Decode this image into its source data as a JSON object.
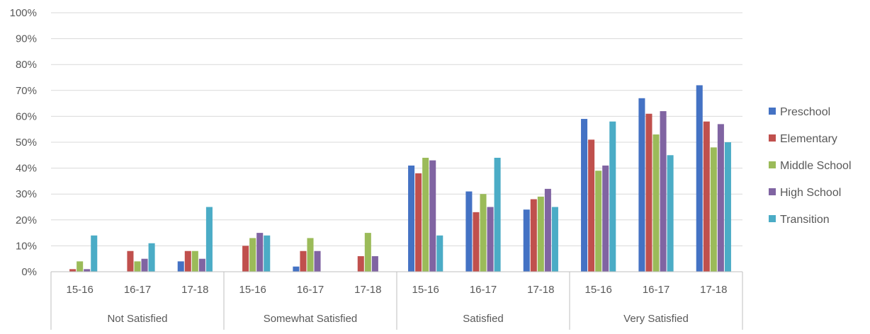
{
  "chart_data": {
    "type": "bar",
    "title": "",
    "xlabel": "",
    "ylabel": "",
    "ylim": [
      0,
      100
    ],
    "yticks": [
      0,
      10,
      20,
      30,
      40,
      50,
      60,
      70,
      80,
      90,
      100
    ],
    "ytick_labels": [
      "0%",
      "10%",
      "20%",
      "30%",
      "40%",
      "50%",
      "60%",
      "70%",
      "80%",
      "90%",
      "100%"
    ],
    "grid": "horizontal",
    "legend_position": "right",
    "groups": [
      {
        "label": "Not Satisfied",
        "categories": [
          "15-16",
          "16-17",
          "17-18"
        ]
      },
      {
        "label": "Somewhat Satisfied",
        "categories": [
          "15-16",
          "16-17",
          "17-18"
        ]
      },
      {
        "label": "Satisfied",
        "categories": [
          "15-16",
          "16-17",
          "17-18"
        ]
      },
      {
        "label": "Very Satisfied",
        "categories": [
          "15-16",
          "16-17",
          "17-18"
        ]
      }
    ],
    "series": [
      {
        "name": "Preschool",
        "color": "#4472C4",
        "values": [
          0,
          0,
          4,
          0,
          2,
          0,
          41,
          31,
          24,
          59,
          67,
          72
        ]
      },
      {
        "name": "Elementary",
        "color": "#C0504D",
        "values": [
          1,
          8,
          8,
          10,
          8,
          6,
          38,
          23,
          28,
          51,
          61,
          58
        ]
      },
      {
        "name": "Middle School",
        "color": "#9BBB59",
        "values": [
          4,
          4,
          8,
          13,
          13,
          15,
          44,
          30,
          29,
          39,
          53,
          48
        ]
      },
      {
        "name": "High School",
        "color": "#8064A2",
        "values": [
          1,
          5,
          5,
          15,
          8,
          6,
          43,
          25,
          32,
          41,
          62,
          57
        ]
      },
      {
        "name": "Transition",
        "color": "#4BACC6",
        "values": [
          14,
          11,
          25,
          14,
          0,
          0,
          14,
          44,
          25,
          58,
          45,
          50
        ]
      }
    ]
  },
  "colors": {
    "grid": "#d9d9d9",
    "axis": "#bfbfbf",
    "text": "#595959"
  }
}
